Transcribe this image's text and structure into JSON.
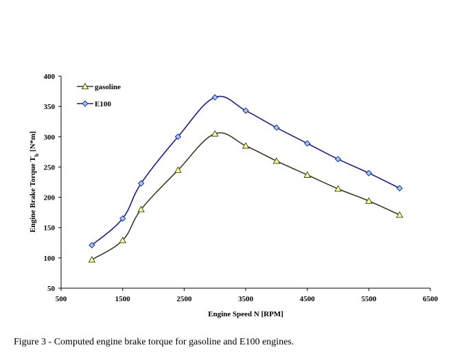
{
  "chart_data": {
    "type": "line",
    "title": "",
    "xlabel": "Engine Speed N [RPM]",
    "ylabel": "Engine Brake Torque T_b [N*m]",
    "ylabel_parts": {
      "main": "Engine Brake Torque T",
      "subscript": "b",
      "suffix": " [N*m]"
    },
    "xlim": [
      500,
      6500
    ],
    "ylim": [
      50,
      400
    ],
    "xticks": [
      500,
      1500,
      2500,
      3500,
      4500,
      5500,
      6500
    ],
    "yticks": [
      50,
      100,
      150,
      200,
      250,
      300,
      350,
      400
    ],
    "grid": false,
    "legend_position": "top-left",
    "series": [
      {
        "name": "gasoline",
        "marker": "triangle",
        "line_color": "#3a3a1a",
        "marker_fill": "#ffff99",
        "x": [
          1000,
          1500,
          1800,
          2400,
          3000,
          3500,
          4000,
          4500,
          5000,
          5500,
          6000
        ],
        "y": [
          97,
          129,
          180,
          245,
          305,
          285,
          260,
          237,
          214,
          194,
          171
        ]
      },
      {
        "name": "E100",
        "marker": "diamond",
        "line_color": "#1a1a8c",
        "marker_fill": "#99ccff",
        "x": [
          1000,
          1500,
          1800,
          2400,
          3000,
          3500,
          4000,
          4500,
          5000,
          5500,
          6000
        ],
        "y": [
          121,
          165,
          223,
          300,
          365,
          343,
          315,
          289,
          263,
          240,
          215
        ]
      }
    ]
  },
  "caption": "Figure 3 - Computed engine brake torque for gasoline and E100 engines."
}
